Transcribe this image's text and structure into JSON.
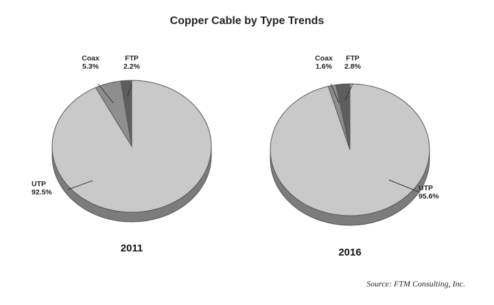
{
  "title": "Copper Cable by Type Trends",
  "source": "Source:  FTM Consulting, Inc.",
  "colors": {
    "UTP": "#c9c9c9",
    "Coax": "#8e8e8e",
    "FTP": "#5e5e5e",
    "edge": "#555555",
    "side": "#7c7c7c"
  },
  "chart_data": [
    {
      "type": "pie",
      "title": "2011",
      "slices": [
        {
          "label": "UTP",
          "value": 92.5,
          "display": "92.5%"
        },
        {
          "label": "Coax",
          "value": 5.3,
          "display": "5.3%"
        },
        {
          "label": "FTP",
          "value": 2.2,
          "display": "2.2%"
        }
      ]
    },
    {
      "type": "pie",
      "title": "2016",
      "slices": [
        {
          "label": "UTP",
          "value": 95.6,
          "display": "95.6%"
        },
        {
          "label": "Coax",
          "value": 1.6,
          "display": "1.6%"
        },
        {
          "label": "FTP",
          "value": 2.8,
          "display": "2.8%"
        }
      ]
    }
  ]
}
